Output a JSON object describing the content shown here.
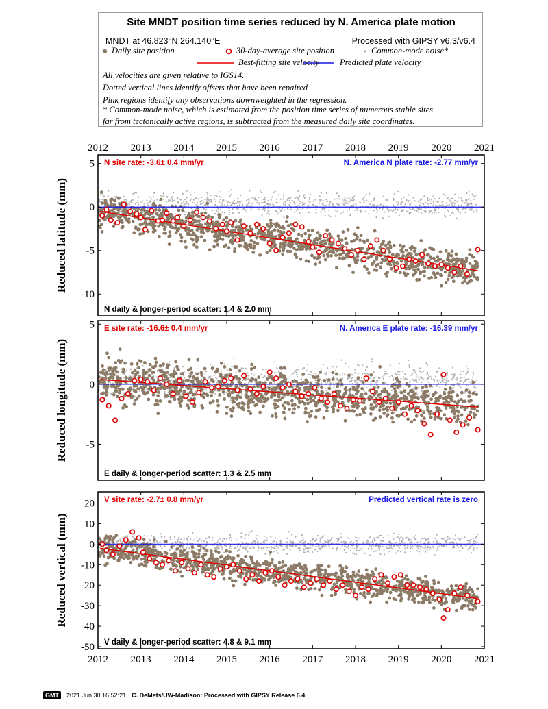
{
  "header": {
    "title": "Site MNDT position time series reduced by N. America plate motion",
    "site_label": "MNDT at 46.823°N 264.140°E",
    "processing_label": "Processed with GIPSY v6.3/v6.4",
    "legend": {
      "daily": "Daily site position",
      "avg30": "30-day-average site position",
      "cmn": "Common-mode noise*",
      "best_fit": "Best-fitting site velocity",
      "predicted": "Predicted plate velocity"
    },
    "notes": [
      "All velocities are given relative to IGS14.",
      "Dotted vertical lines identify offsets that have been repaired",
      "Pink regions identify any observations downweighted in the regression.",
      "* Common-mode noise, which is estimated from the position time series of numerous stable sites",
      "far from tectonically active regions, is subtracted from the measured daily site coordinates."
    ]
  },
  "colors": {
    "daily": "#8c7b67",
    "avg30": "#e00000",
    "cmn": "#b0b0b0",
    "best_fit": "#e00000",
    "predicted": "#1a1ae6",
    "site_rate_text": "#e00000",
    "plate_rate_text": "#1a1ae6"
  },
  "chart_data": [
    {
      "type": "scatter",
      "ylabel": "Reduced latitude (mm)",
      "xlim": [
        2012,
        2021
      ],
      "ylim": [
        -12.5,
        6
      ],
      "yticks": [
        5,
        0,
        -5,
        -10
      ],
      "xticks": [
        "2012",
        "2013",
        "2014",
        "2015",
        "2016",
        "2017",
        "2018",
        "2019",
        "2020",
        "2021"
      ],
      "site_rate_text": "N site rate:  -3.6± 0.4 mm/yr",
      "plate_rate_text": "N. America N plate rate: -2.77 mm/yr",
      "scatter_text": "N daily & longer-period scatter:   1.4 &   2.0 mm",
      "best_fit_line": {
        "x": [
          2012.05,
          2020.85
        ],
        "y": [
          -0.5,
          -7.3
        ]
      },
      "predicted_line": {
        "x": [
          2012,
          2021
        ],
        "y": [
          0,
          0
        ]
      },
      "series": [
        {
          "name": "30-day-average site position",
          "x": [
            2012.1,
            2012.2,
            2012.3,
            2012.45,
            2012.6,
            2012.75,
            2012.9,
            2013.0,
            2013.1,
            2013.25,
            2013.4,
            2013.5,
            2013.6,
            2013.75,
            2013.85,
            2014.0,
            2014.15,
            2014.3,
            2014.45,
            2014.6,
            2014.75,
            2014.9,
            2015.0,
            2015.1,
            2015.25,
            2015.4,
            2015.55,
            2015.7,
            2015.85,
            2016.0,
            2016.15,
            2016.3,
            2016.45,
            2016.6,
            2016.75,
            2016.9,
            2017.0,
            2017.15,
            2017.3,
            2017.45,
            2017.6,
            2017.75,
            2017.9,
            2018.05,
            2018.2,
            2018.35,
            2018.5,
            2018.65,
            2018.8,
            2018.95,
            2019.1,
            2019.25,
            2019.4,
            2019.55,
            2019.7,
            2019.85,
            2020.0,
            2020.15,
            2020.3,
            2020.45,
            2020.6,
            2020.85
          ],
          "y": [
            -1.0,
            -0.3,
            -1.5,
            -1.8,
            0.3,
            -0.5,
            -0.8,
            -1.2,
            -2.6,
            -0.4,
            -1.6,
            -1.5,
            -0.7,
            -1.6,
            -1.2,
            -2.2,
            -1.5,
            -0.6,
            -1.2,
            -1.6,
            -2.5,
            -2.0,
            -2.8,
            -1.8,
            -3.8,
            -2.2,
            -3.0,
            -2.0,
            -2.5,
            -4.2,
            -5.0,
            -3.5,
            -3.0,
            -2.0,
            -2.3,
            -4.0,
            -4.6,
            -5.2,
            -3.3,
            -3.8,
            -4.2,
            -4.8,
            -5.5,
            -5.0,
            -6.0,
            -4.5,
            -3.8,
            -5.0,
            -6.0,
            -7.0,
            -6.8,
            -6.0,
            -6.2,
            -5.5,
            -6.5,
            -6.8,
            -6.6,
            -7.0,
            -7.5,
            -6.8,
            -7.7,
            -4.9
          ]
        },
        {
          "name": "Daily site position"
        },
        {
          "name": "Common-mode noise*"
        }
      ]
    },
    {
      "type": "scatter",
      "ylabel": "Reduced longitude (mm)",
      "xlim": [
        2012,
        2021
      ],
      "ylim": [
        -8,
        5.3
      ],
      "yticks": [
        5,
        0,
        -5
      ],
      "xticks": [],
      "site_rate_text": "E site rate: -16.6± 0.4 mm/yr",
      "plate_rate_text": "N. America E plate rate: -16.39 mm/yr",
      "scatter_text": "E daily & longer-period scatter:   1.3 &   2.5 mm",
      "best_fit_line": {
        "x": [
          2012.05,
          2020.85
        ],
        "y": [
          0.4,
          -1.9
        ]
      },
      "predicted_line": {
        "x": [
          2012,
          2021
        ],
        "y": [
          0,
          0
        ]
      },
      "series": [
        {
          "name": "30-day-average site position",
          "x": [
            2012.1,
            2012.25,
            2012.4,
            2012.55,
            2012.7,
            2012.85,
            2013.0,
            2013.15,
            2013.3,
            2013.45,
            2013.6,
            2013.75,
            2013.9,
            2014.05,
            2014.2,
            2014.35,
            2014.5,
            2014.65,
            2014.8,
            2014.95,
            2015.1,
            2015.25,
            2015.4,
            2015.55,
            2015.7,
            2015.85,
            2016.0,
            2016.15,
            2016.3,
            2016.45,
            2016.6,
            2016.75,
            2016.9,
            2017.05,
            2017.2,
            2017.35,
            2017.5,
            2017.65,
            2017.8,
            2017.95,
            2018.1,
            2018.25,
            2018.4,
            2018.55,
            2018.7,
            2018.85,
            2019.0,
            2019.15,
            2019.3,
            2019.45,
            2019.6,
            2019.75,
            2019.9,
            2020.05,
            2020.2,
            2020.35,
            2020.5,
            2020.65,
            2020.85
          ],
          "y": [
            -1.3,
            -1.8,
            -3.0,
            -1.2,
            -0.8,
            0.3,
            0.4,
            0.2,
            -0.5,
            0.5,
            0.0,
            -0.8,
            0.3,
            -1.0,
            -1.5,
            -0.7,
            0.2,
            -0.3,
            -0.2,
            0.3,
            0.5,
            -0.5,
            0.7,
            -0.4,
            -0.8,
            -0.2,
            1.0,
            0.5,
            -0.3,
            0.0,
            -0.6,
            -1.0,
            -0.8,
            -0.3,
            -1.2,
            -1.5,
            -0.8,
            -1.8,
            -2.0,
            -1.3,
            -1.4,
            0.5,
            -0.6,
            -1.5,
            -1.2,
            -2.0,
            -1.5,
            -2.5,
            -1.8,
            -2.2,
            -3.3,
            -4.2,
            -2.5,
            0.8,
            -3.0,
            -4.0,
            -3.4,
            -2.8,
            -3.8
          ]
        },
        {
          "name": "Daily site position"
        },
        {
          "name": "Common-mode noise*"
        }
      ]
    },
    {
      "type": "scatter",
      "ylabel": "Reduced vertical (mm)",
      "xlim": [
        2012,
        2021
      ],
      "ylim": [
        -51,
        25.5
      ],
      "yticks": [
        20,
        10,
        0,
        -10,
        -20,
        -30,
        -40,
        -50
      ],
      "xticks": [
        "2012",
        "2013",
        "2014",
        "2015",
        "2016",
        "2017",
        "2018",
        "2019",
        "2020",
        "2021"
      ],
      "site_rate_text": "V site rate:  -2.7± 0.8 mm/yr",
      "plate_rate_text": "Predicted vertical rate is zero",
      "scatter_text": "V daily & longer-period scatter:   4.8 &   9.1 mm",
      "best_fit_line": {
        "x": [
          2012.05,
          2020.85
        ],
        "y": [
          -2.0,
          -26.5
        ]
      },
      "predicted_line": {
        "x": [
          2012,
          2021
        ],
        "y": [
          0,
          0
        ]
      },
      "series": [
        {
          "name": "30-day-average site position",
          "x": [
            2012.1,
            2012.2,
            2012.35,
            2012.5,
            2012.65,
            2012.8,
            2012.95,
            2013.05,
            2013.2,
            2013.35,
            2013.5,
            2013.65,
            2013.8,
            2013.95,
            2014.1,
            2014.25,
            2014.4,
            2014.55,
            2014.7,
            2014.85,
            2015.0,
            2015.15,
            2015.3,
            2015.45,
            2015.6,
            2015.75,
            2015.9,
            2016.05,
            2016.2,
            2016.35,
            2016.5,
            2016.65,
            2016.8,
            2016.95,
            2017.1,
            2017.25,
            2017.4,
            2017.55,
            2017.7,
            2017.85,
            2018.0,
            2018.15,
            2018.3,
            2018.45,
            2018.6,
            2018.75,
            2018.9,
            2019.05,
            2019.2,
            2019.35,
            2019.5,
            2019.65,
            2019.8,
            2019.95,
            2020.05,
            2020.15,
            2020.3,
            2020.45,
            2020.6,
            2020.85
          ],
          "y": [
            0,
            -3,
            -5,
            -1,
            2,
            6,
            3,
            -4,
            -7,
            -9,
            -10,
            -8,
            -13,
            -9,
            -12,
            -14,
            -10,
            -15,
            -16,
            -12,
            -11,
            -10,
            -13,
            -17,
            -15,
            -18,
            -14,
            -13,
            -16,
            -20,
            -18,
            -17,
            -21,
            -19,
            -17,
            -20,
            -18,
            -22,
            -20,
            -23,
            -25,
            -21,
            -22,
            -17,
            -15,
            -19,
            -16,
            -15,
            -20,
            -20,
            -21,
            -22,
            -24,
            -27,
            -36,
            -32,
            -24,
            -21,
            -25,
            -28
          ]
        },
        {
          "name": "Daily site position"
        },
        {
          "name": "Common-mode noise*"
        }
      ]
    }
  ],
  "footer": {
    "logo": "GMT",
    "timestamp": "2021 Jun 30 16:52:21",
    "credit": "C. DeMets/UW-Madison: Processed with GIPSY Release 6.4"
  }
}
